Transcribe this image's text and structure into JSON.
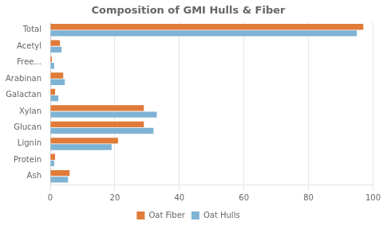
{
  "chart_data": {
    "type": "bar",
    "orientation": "horizontal",
    "title": "Composition of GMI Hulls & Fiber",
    "categories": [
      "Total",
      "Acetyl",
      "Free...",
      "Arabinan",
      "Galactan",
      "Xylan",
      "Glucan",
      "Lignin",
      "Protein",
      "Ash"
    ],
    "series": [
      {
        "name": "Oat Fiber",
        "color": "#E07B39",
        "values": [
          97,
          3.0,
          0.5,
          4.0,
          1.5,
          29,
          29,
          21,
          1.5,
          6.0
        ]
      },
      {
        "name": "Oat Hulls",
        "color": "#7EB3D4",
        "values": [
          95,
          3.5,
          1.2,
          4.5,
          2.5,
          33,
          32,
          19,
          1.2,
          5.5
        ]
      }
    ],
    "xlim": [
      0,
      100
    ],
    "xticks": [
      0,
      20,
      40,
      60,
      80,
      100
    ],
    "grid": true,
    "legend": "bottom"
  }
}
